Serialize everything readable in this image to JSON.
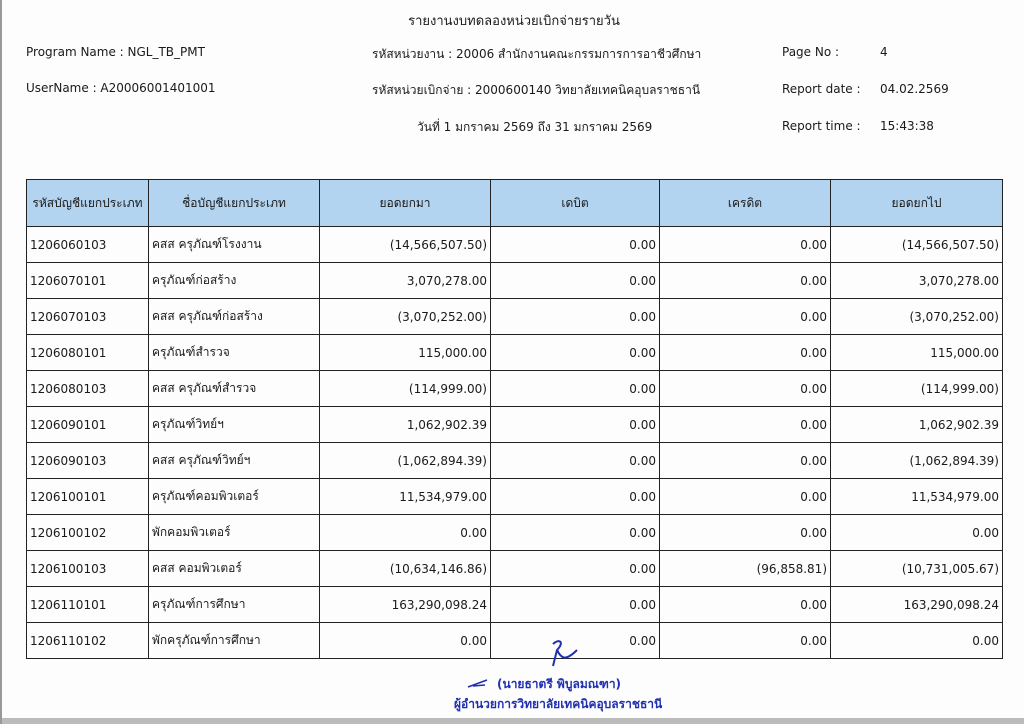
{
  "title": "รายงานงบทดลองหน่วยเบิกจ่ายรายวัน",
  "header": {
    "program_name": "Program Name : NGL_TB_PMT",
    "username": "UserName : A20006001401001",
    "agency": "รหัสหน่วยงาน : 20006 สำนักงานคณะกรรมการการอาชีวศึกษา",
    "disbursing_unit": "รหัสหน่วยเบิกจ่าย : 2000600140 วิทยาลัยเทคนิคอุบลราชธานี",
    "period": "วันที่ 1 มกราคม 2569 ถึง 31 มกราคม 2569",
    "page_no_label": "Page No :",
    "page_no": "4",
    "report_date_label": "Report date :",
    "report_date": "04.02.2569",
    "report_time_label": "Report time :",
    "report_time": "15:43:38"
  },
  "table": {
    "columns": [
      "รหัสบัญชีแยกประเภท",
      "ชื่อบัญชีแยกประเภท",
      "ยอดยกมา",
      "เดบิต",
      "เครดิต",
      "ยอดยกไป"
    ],
    "rows": [
      [
        "1206060103",
        "คสส ครุภัณฑ์โรงงาน",
        "(14,566,507.50)",
        "0.00",
        "0.00",
        "(14,566,507.50)"
      ],
      [
        "1206070101",
        "ครุภัณฑ์ก่อสร้าง",
        "3,070,278.00",
        "0.00",
        "0.00",
        "3,070,278.00"
      ],
      [
        "1206070103",
        "คสส ครุภัณฑ์ก่อสร้าง",
        "(3,070,252.00)",
        "0.00",
        "0.00",
        "(3,070,252.00)"
      ],
      [
        "1206080101",
        "ครุภัณฑ์สำรวจ",
        "115,000.00",
        "0.00",
        "0.00",
        "115,000.00"
      ],
      [
        "1206080103",
        "คสส ครุภัณฑ์สำรวจ",
        "(114,999.00)",
        "0.00",
        "0.00",
        "(114,999.00)"
      ],
      [
        "1206090101",
        "ครุภัณฑ์วิทย์ฯ",
        "1,062,902.39",
        "0.00",
        "0.00",
        "1,062,902.39"
      ],
      [
        "1206090103",
        "คสส ครุภัณฑ์วิทย์ฯ",
        "(1,062,894.39)",
        "0.00",
        "0.00",
        "(1,062,894.39)"
      ],
      [
        "1206100101",
        "ครุภัณฑ์คอมพิวเตอร์",
        "11,534,979.00",
        "0.00",
        "0.00",
        "11,534,979.00"
      ],
      [
        "1206100102",
        "พักคอมพิวเตอร์",
        "0.00",
        "0.00",
        "0.00",
        "0.00"
      ],
      [
        "1206100103",
        "คสส คอมพิวเตอร์",
        "(10,634,146.86)",
        "0.00",
        "(96,858.81)",
        "(10,731,005.67)"
      ],
      [
        "1206110101",
        "ครุภัณฑ์การศึกษา",
        "163,290,098.24",
        "0.00",
        "0.00",
        "163,290,098.24"
      ],
      [
        "1206110102",
        "พักครุภัณฑ์การศึกษา",
        "0.00",
        "0.00",
        "0.00",
        "0.00"
      ]
    ]
  },
  "stamp": {
    "name": "(นายธาตรี  พิบูลมณฑา)",
    "position": "ผู้อำนวยการวิทยาลัยเทคนิคอุบลราชธานี",
    "color": "#1f2fb0"
  }
}
